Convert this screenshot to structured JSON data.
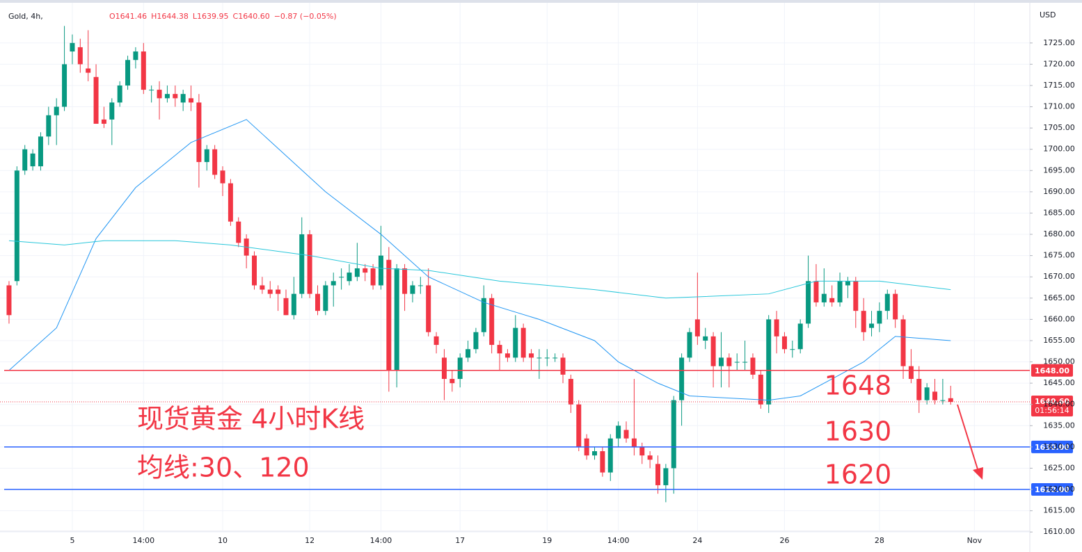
{
  "chart_data": {
    "type": "candlestick",
    "symbol": "Gold, 4h,",
    "legend_values": [
      "O1641.46",
      "H1644.38",
      "L1639.95",
      "C1640.60",
      "−0.87 (−0.05%)"
    ],
    "currency": "USD",
    "annotations": [
      "现货黄金 4小时K线",
      "均线:30、120"
    ],
    "up_color": "#089981",
    "down_color": "#f23645",
    "xlim": [
      -1.14,
      129.0
    ],
    "ylim": [
      1610.2,
      1730.2
    ],
    "xticks": [
      {
        "value": 8,
        "label": "5"
      },
      {
        "value": 17,
        "label": "14:00"
      },
      {
        "value": 27,
        "label": "10"
      },
      {
        "value": 38,
        "label": "12"
      },
      {
        "value": 47,
        "label": "14:00"
      },
      {
        "value": 57,
        "label": "17"
      },
      {
        "value": 68,
        "label": "19"
      },
      {
        "value": 77,
        "label": "14:00"
      },
      {
        "value": 87,
        "label": "24"
      },
      {
        "value": 98,
        "label": "26"
      },
      {
        "value": 110,
        "label": "28"
      },
      {
        "value": 122,
        "label": "Nov"
      }
    ],
    "yticks": [
      {
        "value": 1610,
        "label": "1610.00"
      },
      {
        "value": 1615,
        "label": "1615.00"
      },
      {
        "value": 1620,
        "label": "1620.00"
      },
      {
        "value": 1625,
        "label": "1625.00"
      },
      {
        "value": 1630,
        "label": "1630.00"
      },
      {
        "value": 1635,
        "label": "1635.00"
      },
      {
        "value": 1640,
        "label": "1640.00"
      },
      {
        "value": 1645,
        "label": "1645.00"
      },
      {
        "value": 1650,
        "label": "1650.00"
      },
      {
        "value": 1655,
        "label": "1655.00"
      },
      {
        "value": 1660,
        "label": "1660.00"
      },
      {
        "value": 1665,
        "label": "1665.00"
      },
      {
        "value": 1670,
        "label": "1670.00"
      },
      {
        "value": 1675,
        "label": "1675.00"
      },
      {
        "value": 1680,
        "label": "1680.00"
      },
      {
        "value": 1685,
        "label": "1685.00"
      },
      {
        "value": 1690,
        "label": "1690.00"
      },
      {
        "value": 1695,
        "label": "1695.00"
      },
      {
        "value": 1700,
        "label": "1700.00"
      },
      {
        "value": 1705,
        "label": "1705.00"
      },
      {
        "value": 1710,
        "label": "1710.00"
      },
      {
        "value": 1715,
        "label": "1715.00"
      },
      {
        "value": 1720,
        "label": "1720.00"
      },
      {
        "value": 1725,
        "label": "1725.00"
      }
    ],
    "grid": true,
    "open": [
      1668,
      1669,
      1695,
      1696,
      1696,
      1703,
      1708,
      1710,
      1723,
      1724,
      1719,
      1717,
      1707,
      1707,
      1711,
      1715,
      1721,
      1723,
      1714,
      1714,
      1712,
      1713,
      1711,
      1712,
      1711,
      1697,
      1700,
      1695,
      1692,
      1683,
      1679,
      1675,
      1668,
      1667,
      1667,
      1665,
      1661,
      1666,
      1680,
      1666,
      1662,
      1668,
      1670,
      1669,
      1670,
      1672,
      1672,
      1668,
      1674,
      1648,
      1672,
      1666,
      1668,
      1668,
      1656,
      1651,
      1646,
      1646,
      1651,
      1653,
      1657,
      1665,
      1654,
      1652,
      1651,
      1658,
      1652,
      1651,
      1651,
      1651,
      1651,
      1646,
      1640,
      1632,
      1628,
      1629,
      1624,
      1632,
      1634,
      1632,
      1630,
      1628,
      1626,
      1621,
      1625,
      1641,
      1651,
      1660,
      1655,
      1656,
      1649,
      1651,
      1650,
      1650,
      1651,
      1647,
      1640,
      1660,
      1656,
      1653,
      1653,
      1659,
      1669,
      1664,
      1665,
      1664,
      1668,
      1669,
      1662,
      1658,
      1659,
      1662,
      1666,
      1660,
      1649,
      1646,
      1641,
      1643,
      1641,
      1641.46
    ],
    "high": [
      1669,
      1696,
      1701,
      1700,
      1704,
      1710,
      1712,
      1729,
      1727,
      1726,
      1728,
      1720,
      1710,
      1712,
      1716,
      1722,
      1724,
      1725,
      1715,
      1716,
      1715,
      1715,
      1714,
      1715,
      1713,
      1701,
      1701,
      1696,
      1693,
      1684,
      1680,
      1676,
      1670,
      1669,
      1668,
      1667,
      1670,
      1684,
      1681,
      1668,
      1669,
      1671,
      1672,
      1673,
      1678,
      1673,
      1673,
      1682,
      1677,
      1673,
      1673,
      1669,
      1670,
      1672,
      1657,
      1653,
      1648,
      1652,
      1655,
      1658,
      1668,
      1666,
      1655,
      1653,
      1661,
      1659,
      1653,
      1653,
      1653,
      1652,
      1652,
      1647,
      1641,
      1633,
      1630,
      1630,
      1633,
      1636,
      1636,
      1646,
      1631,
      1629,
      1628,
      1626,
      1642,
      1652,
      1658,
      1671,
      1658,
      1657,
      1657,
      1652,
      1652,
      1655,
      1652,
      1648,
      1661,
      1662,
      1657,
      1655,
      1660,
      1675,
      1673,
      1672,
      1668,
      1671,
      1670,
      1670,
      1665,
      1662,
      1664,
      1667,
      1667,
      1661,
      1653,
      1649,
      1645,
      1646,
      1646,
      1644.38
    ],
    "low": [
      1659,
      1668,
      1694,
      1695,
      1695,
      1701,
      1701,
      1709,
      1720,
      1718,
      1716,
      1706,
      1705,
      1701,
      1710,
      1714,
      1719,
      1713,
      1711,
      1707,
      1711,
      1710,
      1709,
      1709,
      1691,
      1695,
      1693,
      1689,
      1682,
      1677,
      1672,
      1667,
      1666,
      1665,
      1662,
      1661,
      1660,
      1665,
      1665,
      1661,
      1661,
      1663,
      1667,
      1668,
      1669,
      1669,
      1667,
      1667,
      1643,
      1644,
      1662,
      1664,
      1666,
      1656,
      1652,
      1641,
      1643,
      1644,
      1650,
      1652,
      1656,
      1652,
      1648,
      1650,
      1650,
      1650,
      1648,
      1646,
      1649,
      1650,
      1645,
      1638,
      1629,
      1627,
      1627,
      1623,
      1622,
      1630,
      1631,
      1628,
      1626,
      1625,
      1619,
      1617,
      1619,
      1635,
      1650,
      1654,
      1653,
      1644,
      1644,
      1644,
      1648,
      1648,
      1646,
      1639,
      1638,
      1652,
      1652,
      1651,
      1652,
      1658,
      1663,
      1663,
      1663,
      1663,
      1665,
      1658,
      1655,
      1656,
      1657,
      1660,
      1658,
      1646,
      1645,
      1638,
      1640,
      1640,
      1640,
      1639.95
    ],
    "close": [
      1661,
      1695,
      1700,
      1699,
      1703,
      1708,
      1710,
      1720,
      1725,
      1720,
      1718,
      1706,
      1706,
      1711,
      1715,
      1721,
      1723,
      1714,
      1714,
      1712,
      1713,
      1712,
      1713,
      1711,
      1697,
      1700,
      1694,
      1692,
      1683,
      1678,
      1675,
      1668,
      1667,
      1666,
      1666,
      1661,
      1666,
      1680,
      1666,
      1662,
      1668,
      1669,
      1670,
      1671,
      1672,
      1671,
      1668,
      1675,
      1648,
      1672,
      1666,
      1668,
      1668,
      1657,
      1654,
      1646,
      1645,
      1651,
      1653,
      1657,
      1665,
      1654,
      1652,
      1651,
      1658,
      1651,
      1651,
      1651,
      1651,
      1651,
      1647,
      1640,
      1630,
      1628,
      1629,
      1624,
      1632,
      1635,
      1632,
      1630,
      1628,
      1627,
      1621,
      1625,
      1641,
      1651,
      1657,
      1656,
      1656,
      1649,
      1651,
      1649,
      1650,
      1650,
      1647,
      1640,
      1660,
      1656,
      1653,
      1653,
      1659,
      1669,
      1664,
      1666,
      1664,
      1669,
      1669,
      1662,
      1657,
      1659,
      1662,
      1666,
      1660,
      1649,
      1646,
      1641,
      1644,
      1641,
      1641,
      1640.6
    ],
    "lines": [
      {
        "color": "#2196f3",
        "x": [
          0,
          6,
          11,
          16,
          23,
          30,
          40,
          47,
          53,
          60,
          67,
          74,
          77,
          82,
          86,
          96,
          100,
          104,
          108,
          112,
          119
        ],
        "values": [
          1648,
          1658,
          1679,
          1691,
          1701.6,
          1707,
          1690,
          1680,
          1670,
          1664,
          1660,
          1655,
          1650,
          1645,
          1642,
          1641,
          1642,
          1646,
          1650,
          1656,
          1655
        ]
      },
      {
        "color": "#26c6da",
        "x": [
          0,
          7,
          12,
          21,
          28,
          38,
          47,
          53,
          62,
          74,
          83,
          96,
          102,
          110,
          119
        ],
        "values": [
          1678.5,
          1677.5,
          1678.5,
          1678.5,
          1677.5,
          1675,
          1672,
          1671.5,
          1669,
          1667,
          1665,
          1666,
          1669,
          1669,
          1667
        ]
      }
    ],
    "hlines": [
      {
        "value": 1648,
        "label": "1648.00",
        "note": "1648",
        "color": "#f23645"
      },
      {
        "value": 1630,
        "label": "1630.00",
        "note": "1630",
        "color": "#2962ff"
      },
      {
        "value": 1620,
        "label": "1620.00",
        "note": "1620",
        "color": "#2962ff"
      }
    ],
    "last": {
      "value": 1640.6,
      "label": "1640.60",
      "countdown": "01:56:14",
      "color": "#f23645"
    }
  }
}
